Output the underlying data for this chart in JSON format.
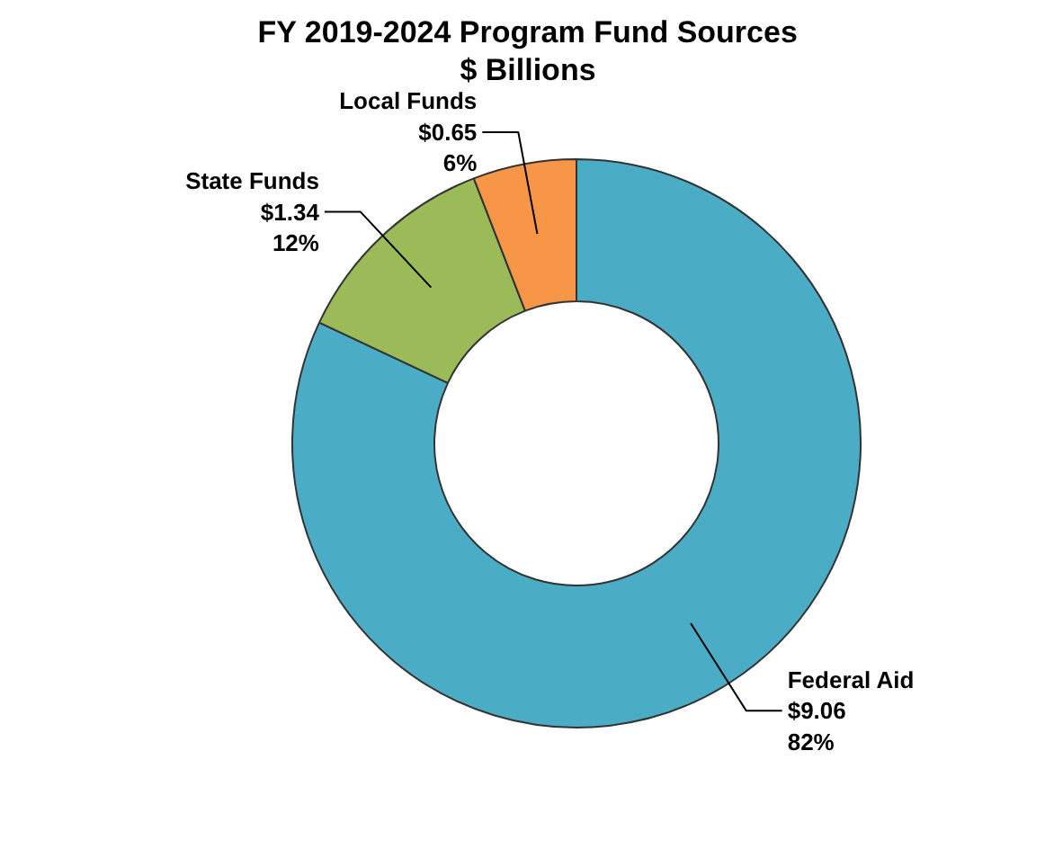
{
  "chart_data": {
    "type": "donut",
    "title": "FY 2019-2024 Program Fund Sources\n$ Billions",
    "categories": [
      "Federal Aid",
      "State Funds",
      "Local Funds"
    ],
    "values": [
      9.06,
      1.34,
      0.65
    ],
    "colors": [
      "#4bacc6",
      "#9bbb59",
      "#f79646"
    ],
    "value_labels": [
      "$9.06\n82%",
      "$1.34\n12%",
      "$0.65\n6%"
    ]
  }
}
